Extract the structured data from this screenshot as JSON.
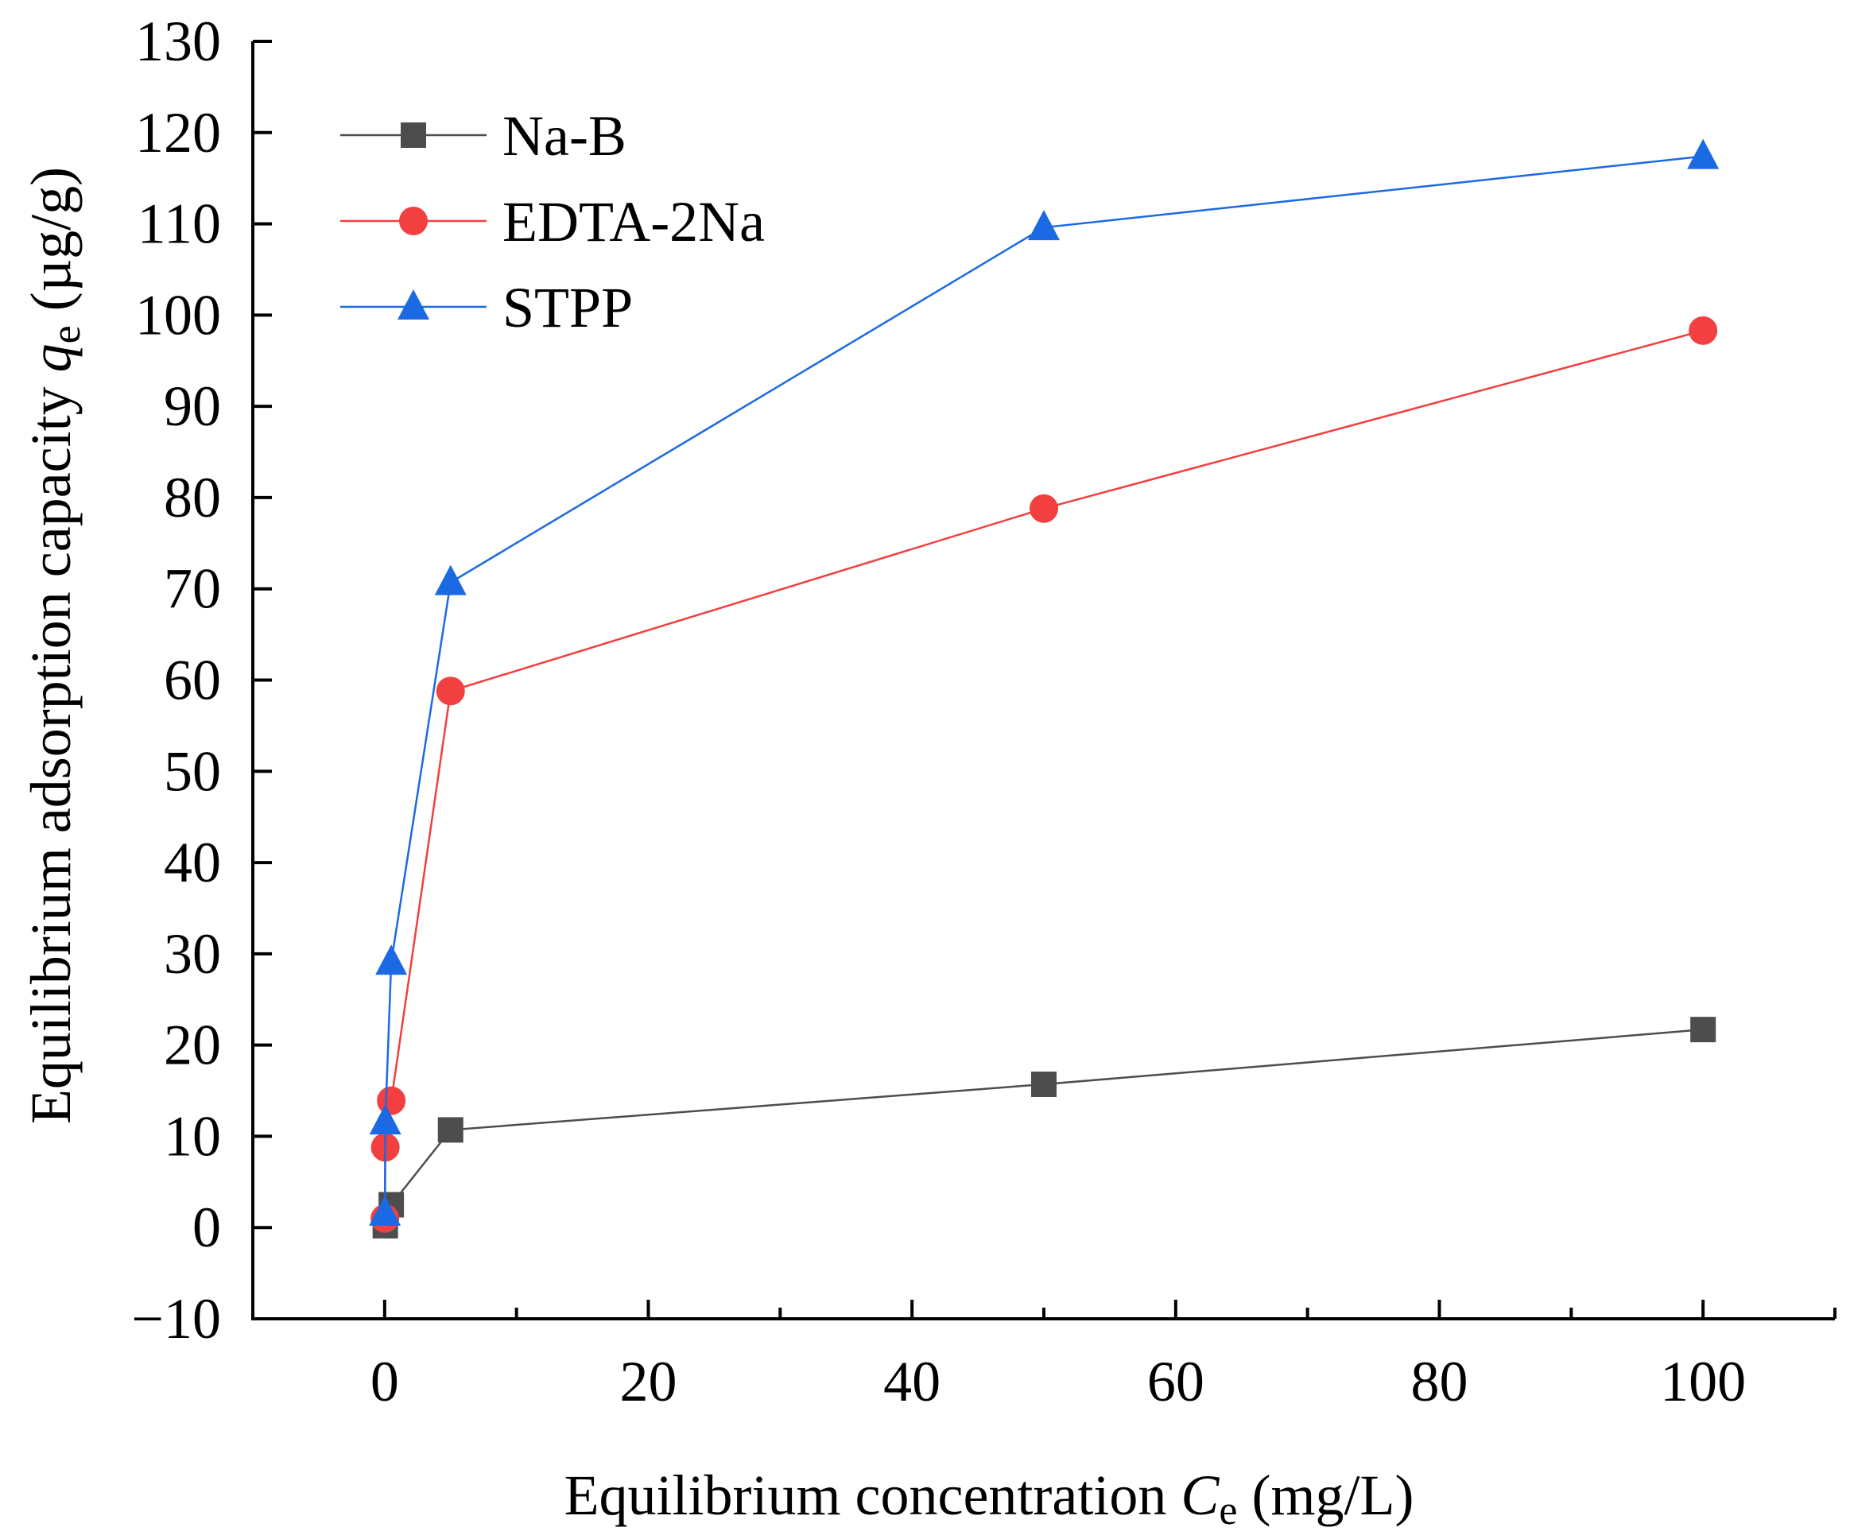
{
  "chart_data": {
    "type": "line",
    "title": "",
    "xlabel": {
      "main": "Equilibrium concentration ",
      "symbol": "C",
      "subscript": "e",
      "unit": " (mg/L)"
    },
    "ylabel": {
      "main": "Equilibrium adsorption capacity ",
      "symbol": "q",
      "subscript": "e",
      "unit": " (µg/g)"
    },
    "xlim": [
      -10,
      110
    ],
    "ylim": [
      -10,
      130
    ],
    "x_ticks": [
      0,
      20,
      40,
      60,
      80,
      100
    ],
    "x_tick_labels": [
      "0",
      "20",
      "40",
      "60",
      "80",
      "100"
    ],
    "x_minor_ticks": [
      10,
      30,
      50,
      70,
      90,
      110
    ],
    "y_ticks": [
      -10,
      0,
      10,
      20,
      30,
      40,
      50,
      60,
      70,
      80,
      90,
      100,
      110,
      120,
      130
    ],
    "y_tick_labels": [
      "−10",
      "0",
      "10",
      "20",
      "30",
      "40",
      "50",
      "60",
      "70",
      "80",
      "90",
      "100",
      "110",
      "120",
      "130"
    ],
    "grid": false,
    "legend": {
      "position": "top-left"
    },
    "series": [
      {
        "name": "Na-B",
        "color": "#4d4d4d",
        "marker": "square",
        "points": [
          {
            "x": 0.05,
            "y": 0.2
          },
          {
            "x": 0.5,
            "y": 2.5
          },
          {
            "x": 5,
            "y": 10.7
          },
          {
            "x": 50,
            "y": 15.7
          },
          {
            "x": 100,
            "y": 21.7
          }
        ]
      },
      {
        "name": "EDTA-2Na",
        "color": "#f23f3f",
        "marker": "circle",
        "points": [
          {
            "x": 0.02,
            "y": 1.0
          },
          {
            "x": 0.05,
            "y": 8.8
          },
          {
            "x": 0.5,
            "y": 13.9
          },
          {
            "x": 5,
            "y": 58.8
          },
          {
            "x": 50,
            "y": 78.8
          },
          {
            "x": 100,
            "y": 98.3
          }
        ]
      },
      {
        "name": "STPP",
        "color": "#1b6ae3",
        "marker": "triangle",
        "points": [
          {
            "x": 0.02,
            "y": 1.6
          },
          {
            "x": 0.05,
            "y": 11.6
          },
          {
            "x": 0.5,
            "y": 29.1
          },
          {
            "x": 5,
            "y": 70.7
          },
          {
            "x": 50,
            "y": 109.6
          },
          {
            "x": 100,
            "y": 117.4
          }
        ]
      }
    ]
  }
}
